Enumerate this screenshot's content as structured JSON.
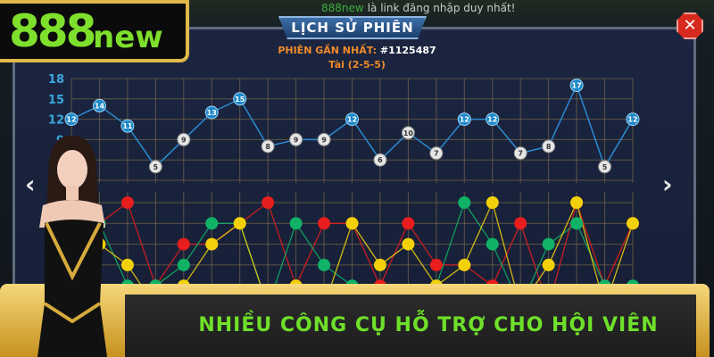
{
  "top_notice": {
    "brand": "888new",
    "text": "là link đăng nhập duy nhất!"
  },
  "logo": {
    "digits": "888",
    "suffix": "new",
    "color": "#7ee02c"
  },
  "panel": {
    "title": "LỊCH SỬ PHIÊN",
    "latest_label": "PHIÊN GẦN NHẤT:",
    "latest_id": "#1125487",
    "latest_result": "Tài (2-5-5)",
    "close_icon": "close-icon",
    "prev_icon": "chevron-left-icon",
    "next_icon": "chevron-right-icon"
  },
  "chart_data": [
    {
      "type": "line",
      "y_ticks": [
        "18",
        "15",
        "12",
        "9"
      ],
      "ylim": [
        3,
        18
      ],
      "grid": true,
      "values": [
        12,
        14,
        11,
        5,
        9,
        13,
        15,
        8,
        9,
        9,
        12,
        6,
        10,
        7,
        12,
        12,
        7,
        8,
        17,
        5,
        12
      ],
      "colors": {
        "tai": "#1f88c9",
        "xiu": "#e6e6e6",
        "line": "#2b8ad0"
      }
    },
    {
      "type": "line",
      "ylim": [
        1,
        6
      ],
      "grid": true,
      "series": [
        {
          "color": "#e81d1d",
          "values": [
            4,
            5,
            6,
            2,
            4,
            4,
            5,
            6,
            2,
            5,
            5,
            2,
            5,
            3,
            3,
            2,
            5,
            1,
            6,
            2,
            5
          ]
        },
        {
          "color": "#10b266",
          "values": [
            4,
            5,
            2,
            2,
            3,
            5,
            5,
            1,
            5,
            3,
            2,
            1,
            1,
            2,
            6,
            4,
            1,
            4,
            5,
            2,
            2
          ]
        },
        {
          "color": "#f2d10a",
          "values": [
            4,
            4,
            3,
            1,
            2,
            4,
            5,
            1,
            2,
            1,
            5,
            3,
            4,
            2,
            3,
            6,
            1,
            3,
            6,
            1,
            5
          ]
        }
      ]
    }
  ],
  "banner": {
    "text": "NHIỀU CÔNG CỤ HỖ TRỢ CHO HỘI VIÊN"
  }
}
